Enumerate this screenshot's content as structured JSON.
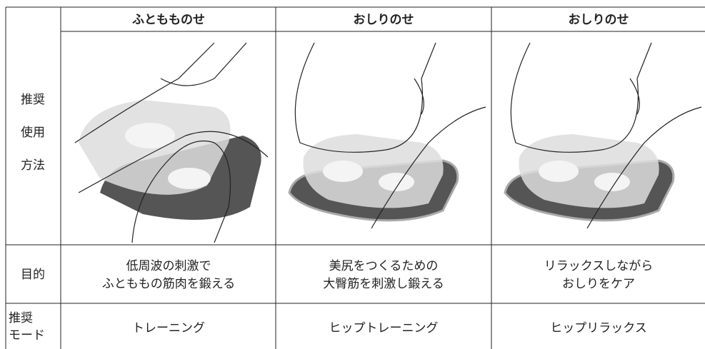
{
  "header": [
    "ふともものせ",
    "おしりのせ",
    "おしりのせ"
  ],
  "rows": [
    {
      "label": [
        "推奨",
        "使用",
        "方法"
      ]
    },
    {
      "label": [
        "目的"
      ],
      "cells": [
        [
          "低周波の刺激で",
          "ふとももの筋肉を鍛える"
        ],
        [
          "美尻をつくるための",
          "大臀筋を刺激し鍛える"
        ],
        [
          "リラックスしながら",
          "おしりをケア"
        ]
      ]
    },
    {
      "label": [
        "推奨",
        "モード"
      ],
      "cells": [
        [
          "トレーニング"
        ],
        [
          "ヒップトレーニング"
        ],
        [
          "ヒップリラックス"
        ]
      ]
    }
  ]
}
